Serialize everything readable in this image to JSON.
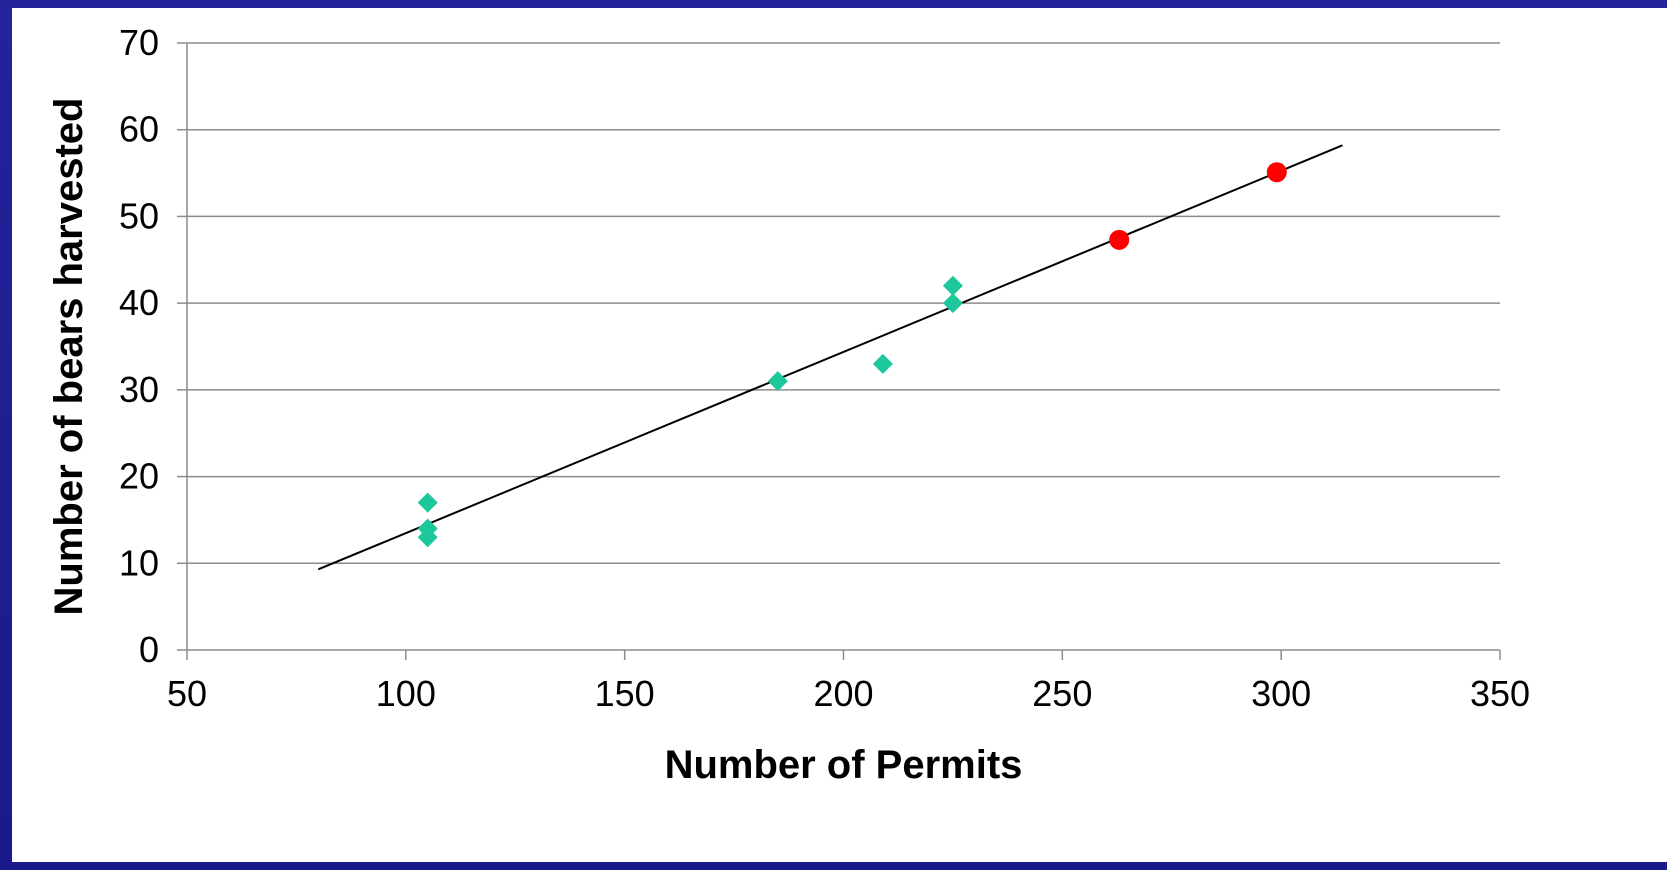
{
  "chart_data": {
    "type": "scatter",
    "title": "",
    "xlabel": "Number of Permits",
    "ylabel": "Number of bears harvested",
    "xlim": [
      50,
      350
    ],
    "ylim": [
      0,
      70
    ],
    "xticks": [
      50,
      100,
      150,
      200,
      250,
      300,
      350
    ],
    "yticks": [
      0,
      10,
      20,
      30,
      40,
      50,
      60,
      70
    ],
    "grid": "horizontal",
    "legend": "none",
    "series": [
      {
        "marker": "diamond",
        "color": "#1cc79b",
        "points": [
          [
            105,
            17
          ],
          [
            105,
            14
          ],
          [
            105,
            13
          ],
          [
            185,
            31
          ],
          [
            209,
            33
          ],
          [
            225,
            42
          ],
          [
            225,
            40
          ]
        ]
      },
      {
        "marker": "circle",
        "color": "#ff0000",
        "points": [
          [
            263,
            47.3
          ],
          [
            299,
            55.1
          ]
        ]
      }
    ],
    "trendline": {
      "color": "#000000",
      "from": [
        80,
        9.3
      ],
      "to": [
        314,
        58.2
      ]
    }
  }
}
